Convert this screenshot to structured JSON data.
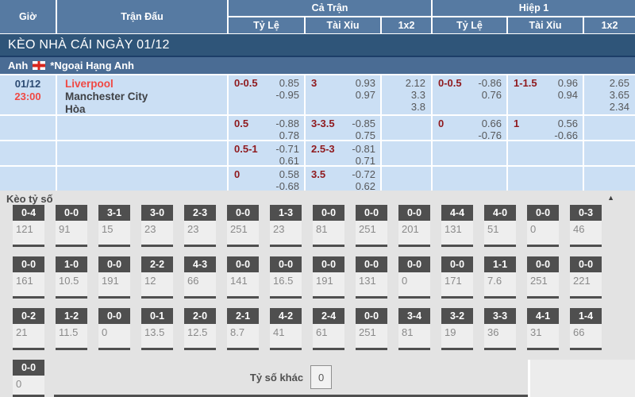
{
  "header": {
    "col_time": "Giờ",
    "col_match": "Trận Đấu",
    "group_full": "Cả Trận",
    "group_half": "Hiệp 1",
    "sub_handicap": "Tỷ Lệ",
    "sub_overunder": "Tài Xỉu",
    "sub_1x2": "1x2"
  },
  "banner": {
    "title": "KÈO NHÀ CÁI NGÀY 01/12"
  },
  "league": {
    "country": "Anh",
    "name": "*Ngoại Hạng Anh"
  },
  "match": {
    "date": "01/12",
    "time": "23:00",
    "home": "Liverpool",
    "away": "Manchester City",
    "draw": "Hòa",
    "rows": [
      {
        "ft_hc": {
          "line": "0-0.5",
          "odds": [
            "0.85",
            "-0.95"
          ]
        },
        "ft_ou": {
          "line": "3",
          "odds": [
            "0.93",
            "0.97"
          ]
        },
        "ft_1x2": [
          "2.12",
          "3.3",
          "3.8"
        ],
        "h1_hc": {
          "line": "0-0.5",
          "odds": [
            "-0.86",
            "0.76"
          ]
        },
        "h1_ou": {
          "line": "1-1.5",
          "odds": [
            "0.96",
            "0.94"
          ]
        },
        "h1_1x2": [
          "2.65",
          "3.65",
          "2.34"
        ]
      },
      {
        "ft_hc": {
          "line": "0.5",
          "odds": [
            "-0.88",
            "0.78"
          ]
        },
        "ft_ou": {
          "line": "3-3.5",
          "odds": [
            "-0.85",
            "0.75"
          ]
        },
        "h1_hc": {
          "line": "0",
          "odds": [
            "0.66",
            "-0.76"
          ]
        },
        "h1_ou": {
          "line": "1",
          "odds": [
            "0.56",
            "-0.66"
          ]
        }
      },
      {
        "ft_hc": {
          "line": "0.5-1",
          "odds": [
            "-0.71",
            "0.61"
          ]
        },
        "ft_ou": {
          "line": "2.5-3",
          "odds": [
            "-0.81",
            "0.71"
          ]
        }
      },
      {
        "ft_hc": {
          "line": "0",
          "odds": [
            "0.58",
            "-0.68"
          ]
        },
        "ft_ou": {
          "line": "3.5",
          "odds": [
            "-0.72",
            "0.62"
          ]
        }
      }
    ]
  },
  "score_section": {
    "title": "Kèo tỷ số",
    "collapse_icon": "▲",
    "other_label": "Tỷ số khác",
    "other_value": "0",
    "rows": [
      [
        {
          "score": "0-4",
          "value": "121"
        },
        {
          "score": "0-0",
          "value": "91"
        },
        {
          "score": "3-1",
          "value": "15"
        },
        {
          "score": "3-0",
          "value": "23"
        },
        {
          "score": "2-3",
          "value": "23"
        },
        {
          "score": "0-0",
          "value": "251"
        },
        {
          "score": "1-3",
          "value": "23"
        },
        {
          "score": "0-0",
          "value": "81"
        },
        {
          "score": "0-0",
          "value": "251"
        },
        {
          "score": "0-0",
          "value": "201"
        },
        {
          "score": "4-4",
          "value": "131"
        },
        {
          "score": "4-0",
          "value": "51"
        },
        {
          "score": "0-0",
          "value": "0"
        },
        {
          "score": "0-3",
          "value": "46"
        }
      ],
      [
        {
          "score": "0-0",
          "value": "161"
        },
        {
          "score": "1-0",
          "value": "10.5"
        },
        {
          "score": "0-0",
          "value": "191"
        },
        {
          "score": "2-2",
          "value": "12"
        },
        {
          "score": "4-3",
          "value": "66"
        },
        {
          "score": "0-0",
          "value": "141"
        },
        {
          "score": "0-0",
          "value": "16.5"
        },
        {
          "score": "0-0",
          "value": "191"
        },
        {
          "score": "0-0",
          "value": "131"
        },
        {
          "score": "0-0",
          "value": "0"
        },
        {
          "score": "0-0",
          "value": "171"
        },
        {
          "score": "1-1",
          "value": "7.6"
        },
        {
          "score": "0-0",
          "value": "251"
        },
        {
          "score": "0-0",
          "value": "221"
        }
      ],
      [
        {
          "score": "0-2",
          "value": "21"
        },
        {
          "score": "1-2",
          "value": "11.5"
        },
        {
          "score": "0-0",
          "value": "0"
        },
        {
          "score": "0-1",
          "value": "13.5"
        },
        {
          "score": "2-0",
          "value": "12.5"
        },
        {
          "score": "2-1",
          "value": "8.7"
        },
        {
          "score": "4-2",
          "value": "41"
        },
        {
          "score": "2-4",
          "value": "61"
        },
        {
          "score": "0-0",
          "value": "251"
        },
        {
          "score": "3-4",
          "value": "81"
        },
        {
          "score": "3-2",
          "value": "19"
        },
        {
          "score": "3-3",
          "value": "36"
        },
        {
          "score": "4-1",
          "value": "31"
        },
        {
          "score": "1-4",
          "value": "66"
        }
      ],
      [
        {
          "score": "0-0",
          "value": "0"
        }
      ]
    ]
  },
  "colors": {
    "header_blue": "#567aa2",
    "banner_navy": "#2f5579",
    "league_blue": "#4a6c94",
    "cell_blue": "#cbdff4",
    "handicap_red": "#8f191d",
    "odds_gray": "#57585a",
    "accent_red": "#f04843",
    "box_dark": "#4f4f4f",
    "section_gray": "#e3e3e3"
  }
}
